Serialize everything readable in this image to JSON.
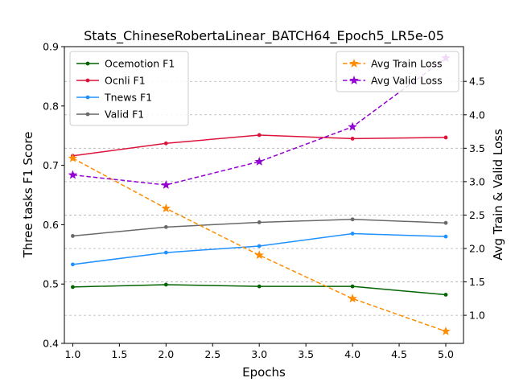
{
  "chart_data": {
    "type": "line",
    "title": "Stats_ChineseRobertaLinear_BATCH64_Epoch5_LR5e-05",
    "xlabel": "Epochs",
    "ylabel": "Three tasks F1 Score",
    "y2label": "Avg Train & Valid Loss",
    "x": [
      1.0,
      2.0,
      3.0,
      4.0,
      5.0
    ],
    "xlim": [
      0.91,
      5.19
    ],
    "ylim": [
      0.4,
      0.9
    ],
    "y2lim": [
      0.58,
      5.02
    ],
    "xticks": [
      1.0,
      1.5,
      2.0,
      2.5,
      3.0,
      3.5,
      4.0,
      4.5,
      5.0
    ],
    "xtick_labels": [
      "1.0",
      "1.5",
      "2.0",
      "2.5",
      "3.0",
      "3.5",
      "4.0",
      "4.5",
      "5.0"
    ],
    "yticks": [
      0.4,
      0.5,
      0.6,
      0.7,
      0.8,
      0.9
    ],
    "ytick_labels": [
      "0.4",
      "0.5",
      "0.6",
      "0.7",
      "0.8",
      "0.9"
    ],
    "y2ticks": [
      1.0,
      1.5,
      2.0,
      2.5,
      3.0,
      3.5,
      4.0,
      4.5
    ],
    "y2tick_labels": [
      "1.0",
      "1.5",
      "2.0",
      "2.5",
      "3.0",
      "3.5",
      "4.0",
      "4.5"
    ],
    "grid": "horizontal dashed, right axis",
    "series": [
      {
        "name": "Ocemotion F1",
        "axis": "left",
        "color": "#006400",
        "marker": "dot",
        "dash": false,
        "values": [
          0.495,
          0.499,
          0.496,
          0.496,
          0.482
        ]
      },
      {
        "name": "Ocnli F1",
        "axis": "left",
        "color": "#dc143c",
        "marker": "dot",
        "dash": false,
        "values": [
          0.716,
          0.737,
          0.751,
          0.745,
          0.747
        ]
      },
      {
        "name": "Tnews F1",
        "axis": "left",
        "color": "#1e90ff",
        "marker": "dot",
        "dash": false,
        "values": [
          0.533,
          0.553,
          0.564,
          0.585,
          0.58
        ]
      },
      {
        "name": "Valid F1",
        "axis": "left",
        "color": "#696969",
        "marker": "dot",
        "dash": false,
        "values": [
          0.581,
          0.596,
          0.604,
          0.609,
          0.603
        ]
      },
      {
        "name": "Avg Train Loss",
        "axis": "right",
        "color": "#ff8c00",
        "marker": "star",
        "dash": true,
        "values": [
          3.35,
          2.6,
          1.9,
          1.25,
          0.76
        ]
      },
      {
        "name": "Avg Valid Loss",
        "axis": "right",
        "color": "#9400d3",
        "marker": "star",
        "dash": true,
        "values": [
          3.1,
          2.95,
          3.3,
          3.82,
          4.85
        ]
      }
    ],
    "legend_left": "upper-left",
    "legend_right": "upper-right"
  }
}
